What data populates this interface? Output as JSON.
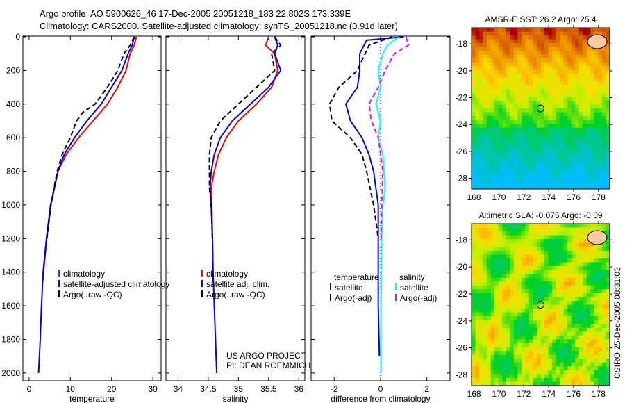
{
  "title_lines": [
    "Argo profile: AO 5900626_46 17-Dec-2005 20051218_183 22.802S 173.339E",
    "Climatology: CARS2000. Satellite-adjusted climatology: synTS_20051218.nc (0.91d later)"
  ],
  "credit": [
    "US ARGO PROJECT",
    "PI: DEAN ROEMMICH"
  ],
  "timestamp": "CSIRO 25-Dec-2005 08:31:03",
  "colors": {
    "climatology": "#ff0000",
    "satellite": "#0000ff",
    "argo": "#000000",
    "sal_satellite": "#00ffff",
    "sal_argo": "#ff00ff"
  },
  "chart_data": [
    {
      "type": "line",
      "xlabel": "temperature",
      "ylabel": "",
      "xlim": [
        -1.5,
        32
      ],
      "ylim": [
        2050,
        0
      ],
      "xticks": [
        0,
        10,
        20,
        30
      ],
      "yticks": [
        0,
        200,
        400,
        600,
        800,
        1000,
        1200,
        1400,
        1600,
        1800,
        2000
      ],
      "legend": [
        "climatology",
        "satellite-adjusted climatology",
        "Argo(..raw -QC)"
      ],
      "series": [
        {
          "name": "climatology",
          "color": "#ff0000",
          "dash": false,
          "points": [
            [
              26,
              0
            ],
            [
              25.5,
              50
            ],
            [
              24.5,
              100
            ],
            [
              23.5,
              200
            ],
            [
              21.5,
              300
            ],
            [
              19,
              400
            ],
            [
              15.5,
              500
            ],
            [
              12,
              600
            ],
            [
              9,
              700
            ],
            [
              7,
              800
            ],
            [
              5.3,
              1000
            ],
            [
              4.3,
              1200
            ],
            [
              3.5,
              1400
            ],
            [
              3.3,
              1460
            ]
          ]
        },
        {
          "name": "satellite-adjusted climatology",
          "color": "#0000ff",
          "dash": false,
          "points": [
            [
              25.5,
              0
            ],
            [
              25,
              50
            ],
            [
              24,
              100
            ],
            [
              22.5,
              200
            ],
            [
              20,
              300
            ],
            [
              17.5,
              400
            ],
            [
              14,
              500
            ],
            [
              11,
              600
            ],
            [
              8.5,
              700
            ],
            [
              7,
              800
            ],
            [
              5.2,
              1000
            ],
            [
              4.2,
              1200
            ],
            [
              3.4,
              1400
            ],
            [
              3,
              1600
            ],
            [
              2.7,
              1800
            ],
            [
              2.3,
              2000
            ]
          ]
        },
        {
          "name": "Argo(..raw -QC)",
          "color": "#000000",
          "dash": true,
          "points": [
            [
              25.5,
              0
            ],
            [
              24.5,
              50
            ],
            [
              23,
              100
            ],
            [
              21.5,
              200
            ],
            [
              19,
              300
            ],
            [
              16,
              400
            ],
            [
              13,
              450
            ],
            [
              11.5,
              500
            ],
            [
              10,
              600
            ],
            [
              8,
              700
            ],
            [
              6.8,
              800
            ],
            [
              5.3,
              1000
            ],
            [
              4.3,
              1200
            ]
          ]
        }
      ]
    },
    {
      "type": "line",
      "xlabel": "salinity",
      "ylabel": "",
      "xlim": [
        33.8,
        36.1
      ],
      "ylim": [
        2050,
        0
      ],
      "xticks": [
        34,
        34.5,
        35,
        35.5,
        36
      ],
      "legend": [
        "climatology",
        "satellite adj. clim.",
        "Argo(..raw -QC)"
      ],
      "series": [
        {
          "name": "climatology",
          "color": "#ff0000",
          "dash": false,
          "points": [
            [
              35.5,
              0
            ],
            [
              35.45,
              50
            ],
            [
              35.6,
              100
            ],
            [
              35.65,
              200
            ],
            [
              35.55,
              300
            ],
            [
              35.3,
              400
            ],
            [
              35.0,
              500
            ],
            [
              34.8,
              600
            ],
            [
              34.67,
              700
            ],
            [
              34.6,
              800
            ],
            [
              34.55,
              900
            ],
            [
              34.56,
              1000
            ],
            [
              34.57,
              1200
            ],
            [
              34.58,
              1400
            ],
            [
              34.58,
              1460
            ]
          ]
        },
        {
          "name": "satellite adj. clim.",
          "color": "#0000ff",
          "dash": false,
          "points": [
            [
              35.6,
              0
            ],
            [
              35.65,
              50
            ],
            [
              35.6,
              100
            ],
            [
              35.7,
              200
            ],
            [
              35.5,
              300
            ],
            [
              35.2,
              400
            ],
            [
              34.9,
              500
            ],
            [
              34.7,
              600
            ],
            [
              34.6,
              700
            ],
            [
              34.55,
              800
            ],
            [
              34.53,
              900
            ],
            [
              34.55,
              1000
            ],
            [
              34.57,
              1200
            ],
            [
              34.58,
              1400
            ],
            [
              34.6,
              1600
            ],
            [
              34.62,
              1800
            ],
            [
              34.64,
              2000
            ]
          ]
        },
        {
          "name": "Argo(..raw -QC)",
          "color": "#000000",
          "dash": true,
          "points": [
            [
              35.6,
              0
            ],
            [
              35.7,
              50
            ],
            [
              35.55,
              100
            ],
            [
              35.6,
              200
            ],
            [
              35.3,
              300
            ],
            [
              35.0,
              400
            ],
            [
              34.7,
              500
            ],
            [
              34.55,
              600
            ],
            [
              34.52,
              700
            ],
            [
              34.52,
              800
            ],
            [
              34.52,
              900
            ],
            [
              34.55,
              1000
            ],
            [
              34.57,
              1200
            ]
          ]
        }
      ]
    },
    {
      "type": "line",
      "xlabel": "difference from climatology",
      "ylabel": "",
      "xlim": [
        -3,
        3
      ],
      "ylim": [
        2050,
        0
      ],
      "xticks": [
        -2,
        0,
        2
      ],
      "legend_groups": [
        {
          "title": "temperature",
          "items": [
            "satellite",
            "Argo(-adj)"
          ]
        },
        {
          "title": "salinity",
          "items": [
            "satellite",
            "Argo(-adj)"
          ]
        }
      ],
      "series": [
        {
          "name": "temperature satellite",
          "color": "#0000ff",
          "dash": false,
          "points": [
            [
              1,
              0
            ],
            [
              -0.6,
              20
            ],
            [
              -0.9,
              100
            ],
            [
              -0.9,
              200
            ],
            [
              -1.0,
              300
            ],
            [
              -1.5,
              400
            ],
            [
              -1.3,
              500
            ],
            [
              -0.8,
              600
            ],
            [
              -0.5,
              700
            ],
            [
              -0.3,
              800
            ],
            [
              -0.1,
              1000
            ],
            [
              -0.1,
              1200
            ],
            [
              -0.1,
              1600
            ],
            [
              -0.05,
              1900
            ]
          ]
        },
        {
          "name": "temperature Argo(-adj)",
          "color": "#000000",
          "dash": true,
          "points": [
            [
              0.5,
              0
            ],
            [
              -0.5,
              50
            ],
            [
              -1.0,
              200
            ],
            [
              -1.8,
              300
            ],
            [
              -2.2,
              400
            ],
            [
              -2.1,
              500
            ],
            [
              -1.7,
              550
            ],
            [
              -1.3,
              600
            ],
            [
              -0.8,
              700
            ],
            [
              -0.6,
              800
            ],
            [
              -0.3,
              1000
            ],
            [
              -0.1,
              1200
            ]
          ]
        },
        {
          "name": "salinity satellite",
          "color": "#00ffff",
          "dash": false,
          "points": [
            [
              0.8,
              0
            ],
            [
              0.3,
              50
            ],
            [
              0.1,
              100
            ],
            [
              -0.1,
              200
            ],
            [
              0,
              300
            ],
            [
              -0.2,
              400
            ],
            [
              0,
              500
            ],
            [
              -0.1,
              600
            ],
            [
              0.1,
              700
            ],
            [
              0.15,
              800
            ],
            [
              0.2,
              900
            ],
            [
              0.1,
              1000
            ],
            [
              0.05,
              1200
            ],
            [
              0.02,
              1600
            ],
            [
              0.02,
              2000
            ]
          ]
        },
        {
          "name": "salinity Argo(-adj)",
          "color": "#ff00ff",
          "dash": true,
          "points": [
            [
              1.1,
              0
            ],
            [
              1.2,
              50
            ],
            [
              0.6,
              100
            ],
            [
              0.2,
              200
            ],
            [
              -0.1,
              300
            ],
            [
              -0.5,
              400
            ],
            [
              -0.4,
              500
            ],
            [
              -0.1,
              600
            ],
            [
              0,
              700
            ],
            [
              0.1,
              800
            ],
            [
              0.05,
              1000
            ],
            [
              0.02,
              1200
            ]
          ]
        }
      ]
    },
    {
      "type": "heatmap",
      "title": "AMSR-E SST: 26.2 Argo: 25.4",
      "xlim": [
        167.8,
        178.9
      ],
      "ylim": [
        -16.8,
        -28.8
      ],
      "xticks": [
        168,
        170,
        172,
        174,
        176,
        178
      ],
      "yticks": [
        -18,
        -20,
        -22,
        -24,
        -26,
        -28
      ],
      "marker": [
        173.339,
        -22.802
      ]
    },
    {
      "type": "heatmap",
      "title": "Altimetric SLA: -0.075 Argo: -0.09",
      "xlim": [
        167.8,
        178.9
      ],
      "ylim": [
        -16.8,
        -28.8
      ],
      "xticks": [
        168,
        170,
        172,
        174,
        176,
        178
      ],
      "yticks": [
        -18,
        -20,
        -22,
        -24,
        -26,
        -28
      ],
      "marker": [
        173.339,
        -22.802
      ]
    }
  ]
}
